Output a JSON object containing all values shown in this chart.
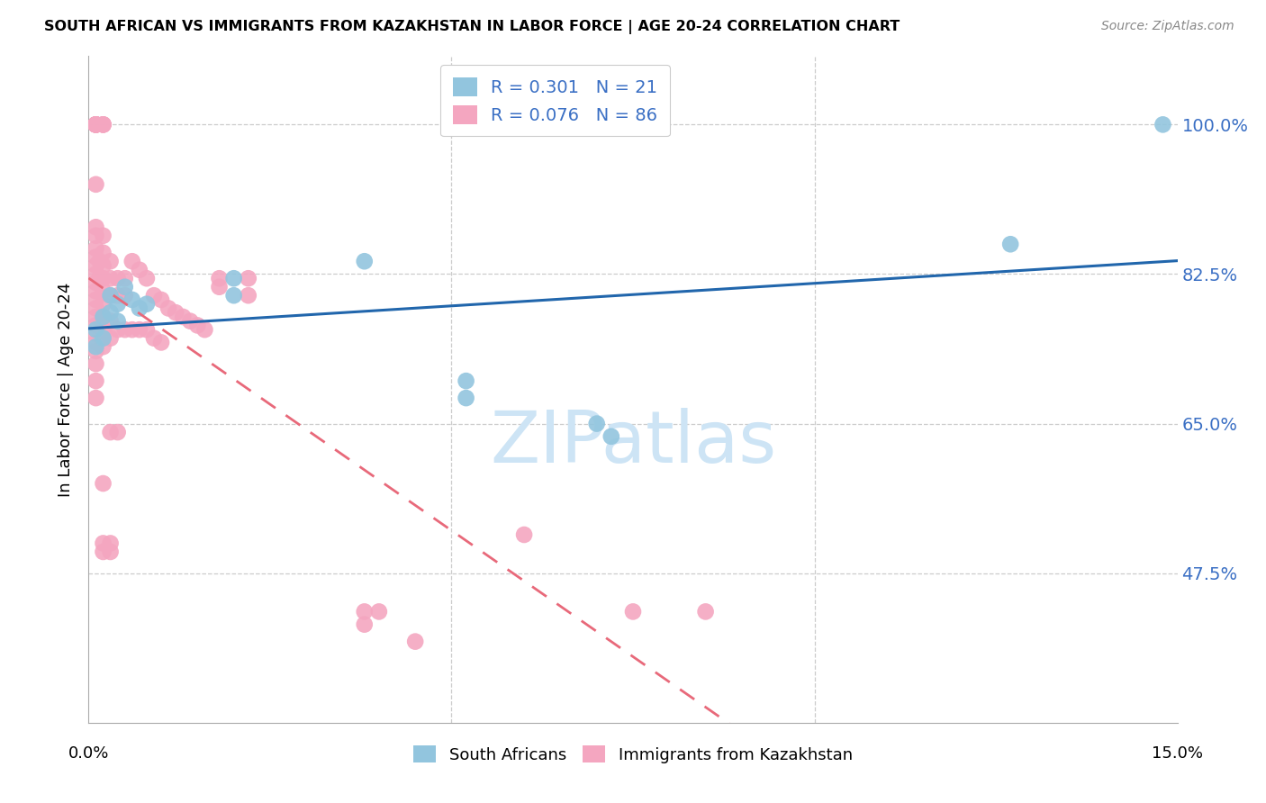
{
  "title": "SOUTH AFRICAN VS IMMIGRANTS FROM KAZAKHSTAN IN LABOR FORCE | AGE 20-24 CORRELATION CHART",
  "source": "Source: ZipAtlas.com",
  "ylabel": "In Labor Force | Age 20-24",
  "ytick_labels": [
    "47.5%",
    "65.0%",
    "82.5%",
    "100.0%"
  ],
  "ytick_values": [
    0.475,
    0.65,
    0.825,
    1.0
  ],
  "xlim": [
    0.0,
    0.15
  ],
  "ylim": [
    0.3,
    1.08
  ],
  "legend_r1": "R = 0.301",
  "legend_n1": "N = 21",
  "legend_r2": "R = 0.076",
  "legend_n2": "N = 86",
  "color_blue": "#92c5de",
  "color_pink": "#f4a6c0",
  "trendline_blue": "#2166ac",
  "trendline_pink": "#e8697a",
  "watermark_color": "#cde4f5",
  "blue_points": [
    [
      0.001,
      0.76
    ],
    [
      0.001,
      0.74
    ],
    [
      0.002,
      0.775
    ],
    [
      0.002,
      0.75
    ],
    [
      0.003,
      0.8
    ],
    [
      0.003,
      0.78
    ],
    [
      0.004,
      0.79
    ],
    [
      0.004,
      0.77
    ],
    [
      0.005,
      0.81
    ],
    [
      0.006,
      0.795
    ],
    [
      0.007,
      0.785
    ],
    [
      0.008,
      0.79
    ],
    [
      0.02,
      0.82
    ],
    [
      0.02,
      0.8
    ],
    [
      0.038,
      0.84
    ],
    [
      0.052,
      0.7
    ],
    [
      0.052,
      0.68
    ],
    [
      0.07,
      0.65
    ],
    [
      0.072,
      0.635
    ],
    [
      0.127,
      0.86
    ],
    [
      0.148,
      1.0
    ]
  ],
  "pink_points": [
    [
      0.001,
      1.0
    ],
    [
      0.001,
      1.0
    ],
    [
      0.001,
      1.0
    ],
    [
      0.001,
      1.0
    ],
    [
      0.001,
      1.0
    ],
    [
      0.001,
      1.0
    ],
    [
      0.001,
      1.0
    ],
    [
      0.001,
      0.93
    ],
    [
      0.001,
      0.88
    ],
    [
      0.001,
      0.87
    ],
    [
      0.001,
      0.855
    ],
    [
      0.001,
      0.845
    ],
    [
      0.001,
      0.835
    ],
    [
      0.001,
      0.825
    ],
    [
      0.001,
      0.815
    ],
    [
      0.001,
      0.805
    ],
    [
      0.001,
      0.795
    ],
    [
      0.001,
      0.785
    ],
    [
      0.001,
      0.775
    ],
    [
      0.001,
      0.765
    ],
    [
      0.001,
      0.755
    ],
    [
      0.001,
      0.745
    ],
    [
      0.001,
      0.735
    ],
    [
      0.001,
      0.72
    ],
    [
      0.001,
      0.7
    ],
    [
      0.001,
      0.68
    ],
    [
      0.0015,
      0.84
    ],
    [
      0.0015,
      0.82
    ],
    [
      0.002,
      1.0
    ],
    [
      0.002,
      1.0
    ],
    [
      0.002,
      1.0
    ],
    [
      0.002,
      0.87
    ],
    [
      0.002,
      0.85
    ],
    [
      0.002,
      0.835
    ],
    [
      0.002,
      0.82
    ],
    [
      0.002,
      0.805
    ],
    [
      0.002,
      0.79
    ],
    [
      0.002,
      0.775
    ],
    [
      0.002,
      0.76
    ],
    [
      0.002,
      0.75
    ],
    [
      0.002,
      0.74
    ],
    [
      0.002,
      0.58
    ],
    [
      0.002,
      0.51
    ],
    [
      0.002,
      0.5
    ],
    [
      0.003,
      0.84
    ],
    [
      0.003,
      0.82
    ],
    [
      0.003,
      0.8
    ],
    [
      0.003,
      0.77
    ],
    [
      0.003,
      0.75
    ],
    [
      0.003,
      0.64
    ],
    [
      0.003,
      0.51
    ],
    [
      0.003,
      0.5
    ],
    [
      0.004,
      0.82
    ],
    [
      0.004,
      0.8
    ],
    [
      0.004,
      0.76
    ],
    [
      0.004,
      0.64
    ],
    [
      0.005,
      0.82
    ],
    [
      0.005,
      0.8
    ],
    [
      0.005,
      0.76
    ],
    [
      0.006,
      0.84
    ],
    [
      0.006,
      0.76
    ],
    [
      0.007,
      0.83
    ],
    [
      0.007,
      0.76
    ],
    [
      0.008,
      0.82
    ],
    [
      0.008,
      0.76
    ],
    [
      0.009,
      0.8
    ],
    [
      0.009,
      0.75
    ],
    [
      0.01,
      0.795
    ],
    [
      0.01,
      0.745
    ],
    [
      0.011,
      0.785
    ],
    [
      0.012,
      0.78
    ],
    [
      0.013,
      0.775
    ],
    [
      0.014,
      0.77
    ],
    [
      0.015,
      0.765
    ],
    [
      0.016,
      0.76
    ],
    [
      0.018,
      0.82
    ],
    [
      0.018,
      0.81
    ],
    [
      0.022,
      0.82
    ],
    [
      0.022,
      0.8
    ],
    [
      0.038,
      0.43
    ],
    [
      0.038,
      0.415
    ],
    [
      0.04,
      0.43
    ],
    [
      0.045,
      0.395
    ],
    [
      0.06,
      0.52
    ],
    [
      0.075,
      0.43
    ],
    [
      0.085,
      0.43
    ]
  ]
}
